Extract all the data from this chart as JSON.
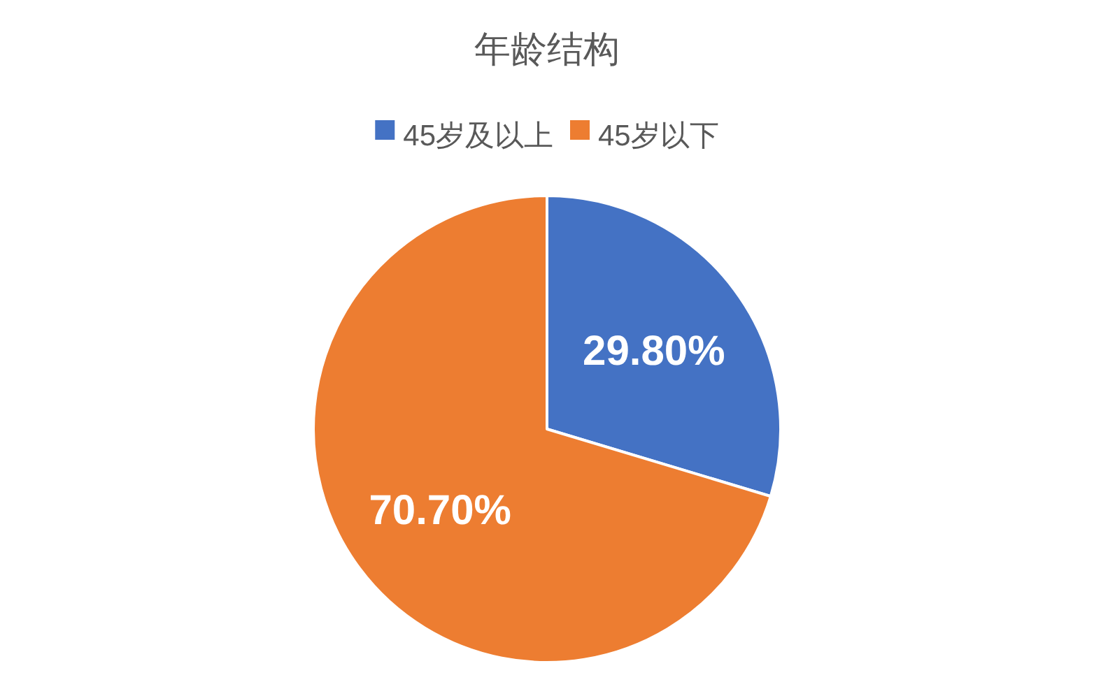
{
  "chart_data": {
    "type": "pie",
    "title": "年龄结构",
    "categories": [
      "45岁及以上",
      "45岁以下"
    ],
    "values": [
      29.8,
      70.7
    ],
    "colors": [
      "#4472c4",
      "#ed7d31"
    ],
    "value_labels": [
      "29.80%",
      "70.70%"
    ],
    "legend": "top"
  }
}
